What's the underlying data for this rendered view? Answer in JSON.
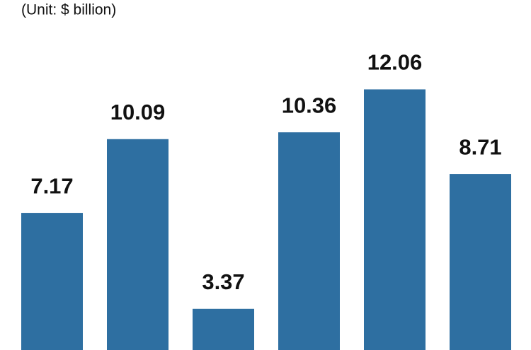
{
  "chart_data": {
    "type": "bar",
    "subtitle": "(Unit: $ billion)",
    "values": [
      7.17,
      10.09,
      3.37,
      10.36,
      12.06,
      8.71
    ],
    "color": "#2e6fa1",
    "ylim": [
      1.74,
      15.6
    ]
  }
}
